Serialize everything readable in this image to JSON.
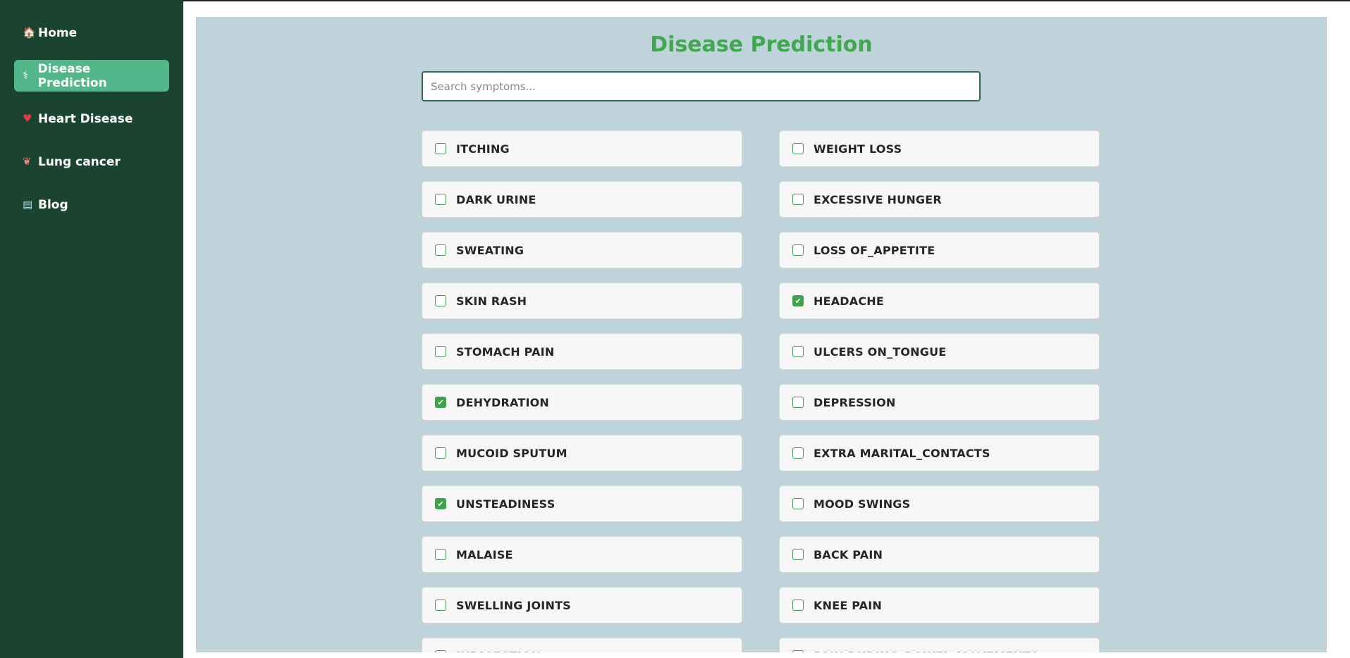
{
  "sidebar": {
    "items": [
      {
        "label": "Home",
        "icon": "house-icon",
        "glyph": "🏠",
        "active": false
      },
      {
        "label": "Disease Prediction",
        "icon": "medical-icon",
        "glyph": "⚕",
        "active": true
      },
      {
        "label": "Heart Disease",
        "icon": "heart-icon",
        "glyph": "♥",
        "active": false
      },
      {
        "label": "Lung cancer",
        "icon": "lungs-icon",
        "glyph": "❦",
        "active": false
      },
      {
        "label": "Blog",
        "icon": "book-icon",
        "glyph": "▤",
        "active": false
      }
    ]
  },
  "main": {
    "title": "Disease Prediction",
    "search": {
      "placeholder": "Search symptoms...",
      "value": ""
    },
    "symptoms_left": [
      {
        "label": "ITCHING",
        "checked": false
      },
      {
        "label": "DARK URINE",
        "checked": false
      },
      {
        "label": "SWEATING",
        "checked": false
      },
      {
        "label": "SKIN RASH",
        "checked": false
      },
      {
        "label": "STOMACH PAIN",
        "checked": false
      },
      {
        "label": "DEHYDRATION",
        "checked": true
      },
      {
        "label": "MUCOID SPUTUM",
        "checked": false
      },
      {
        "label": "UNSTEADINESS",
        "checked": true
      },
      {
        "label": "MALAISE",
        "checked": false
      },
      {
        "label": "SWELLING JOINTS",
        "checked": false
      },
      {
        "label": "INDIGESTION",
        "checked": false
      }
    ],
    "symptoms_right": [
      {
        "label": "WEIGHT LOSS",
        "checked": false
      },
      {
        "label": "EXCESSIVE HUNGER",
        "checked": false
      },
      {
        "label": "LOSS OF_APPETITE",
        "checked": false
      },
      {
        "label": "HEADACHE",
        "checked": true
      },
      {
        "label": "ULCERS ON_TONGUE",
        "checked": false
      },
      {
        "label": "DEPRESSION",
        "checked": false
      },
      {
        "label": "EXTRA MARITAL_CONTACTS",
        "checked": false
      },
      {
        "label": "MOOD SWINGS",
        "checked": false
      },
      {
        "label": "BACK PAIN",
        "checked": false
      },
      {
        "label": "KNEE PAIN",
        "checked": false
      },
      {
        "label": "PAIN DURING_BOWEL_MOVEMENTS",
        "checked": false
      }
    ]
  },
  "colors": {
    "sidebar_bg": "#1b4332",
    "active_bg": "#52b788",
    "main_bg": "#bfd3db",
    "title": "#40a84e",
    "checkbox": "#3fa34d"
  }
}
